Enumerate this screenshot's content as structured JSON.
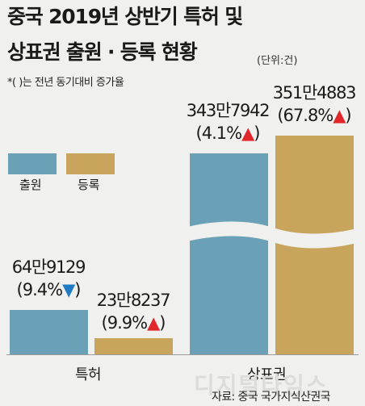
{
  "chart_data": {
    "type": "bar",
    "title_line1": "중국 2019년 상반기 특허 및",
    "title_line2": "상표권 출원 · 등록 현황",
    "unit": "(단위:건)",
    "note": "*( )는 전년 동기대비 증가율",
    "categories": [
      "특허",
      "상표권"
    ],
    "series": [
      {
        "name": "출원",
        "color": "#6aa1b7",
        "values": [
          649129,
          3437942
        ],
        "labels": [
          "64만9129",
          "343만7942"
        ],
        "changes": [
          "(9.4%▼)",
          "(4.1%▲)"
        ],
        "directions": [
          "down",
          "up"
        ]
      },
      {
        "name": "등록",
        "color": "#c9a45c",
        "values": [
          238237,
          3514883
        ],
        "labels": [
          "23만8237",
          "351만4883"
        ],
        "changes": [
          "(9.9%▲)",
          "(67.8%▲)"
        ],
        "directions": [
          "up",
          "up"
        ]
      }
    ],
    "axis_break": true,
    "legend_position": "left",
    "source": "자료: 중국 국가지식산권국",
    "watermark": "디지털타임스"
  }
}
